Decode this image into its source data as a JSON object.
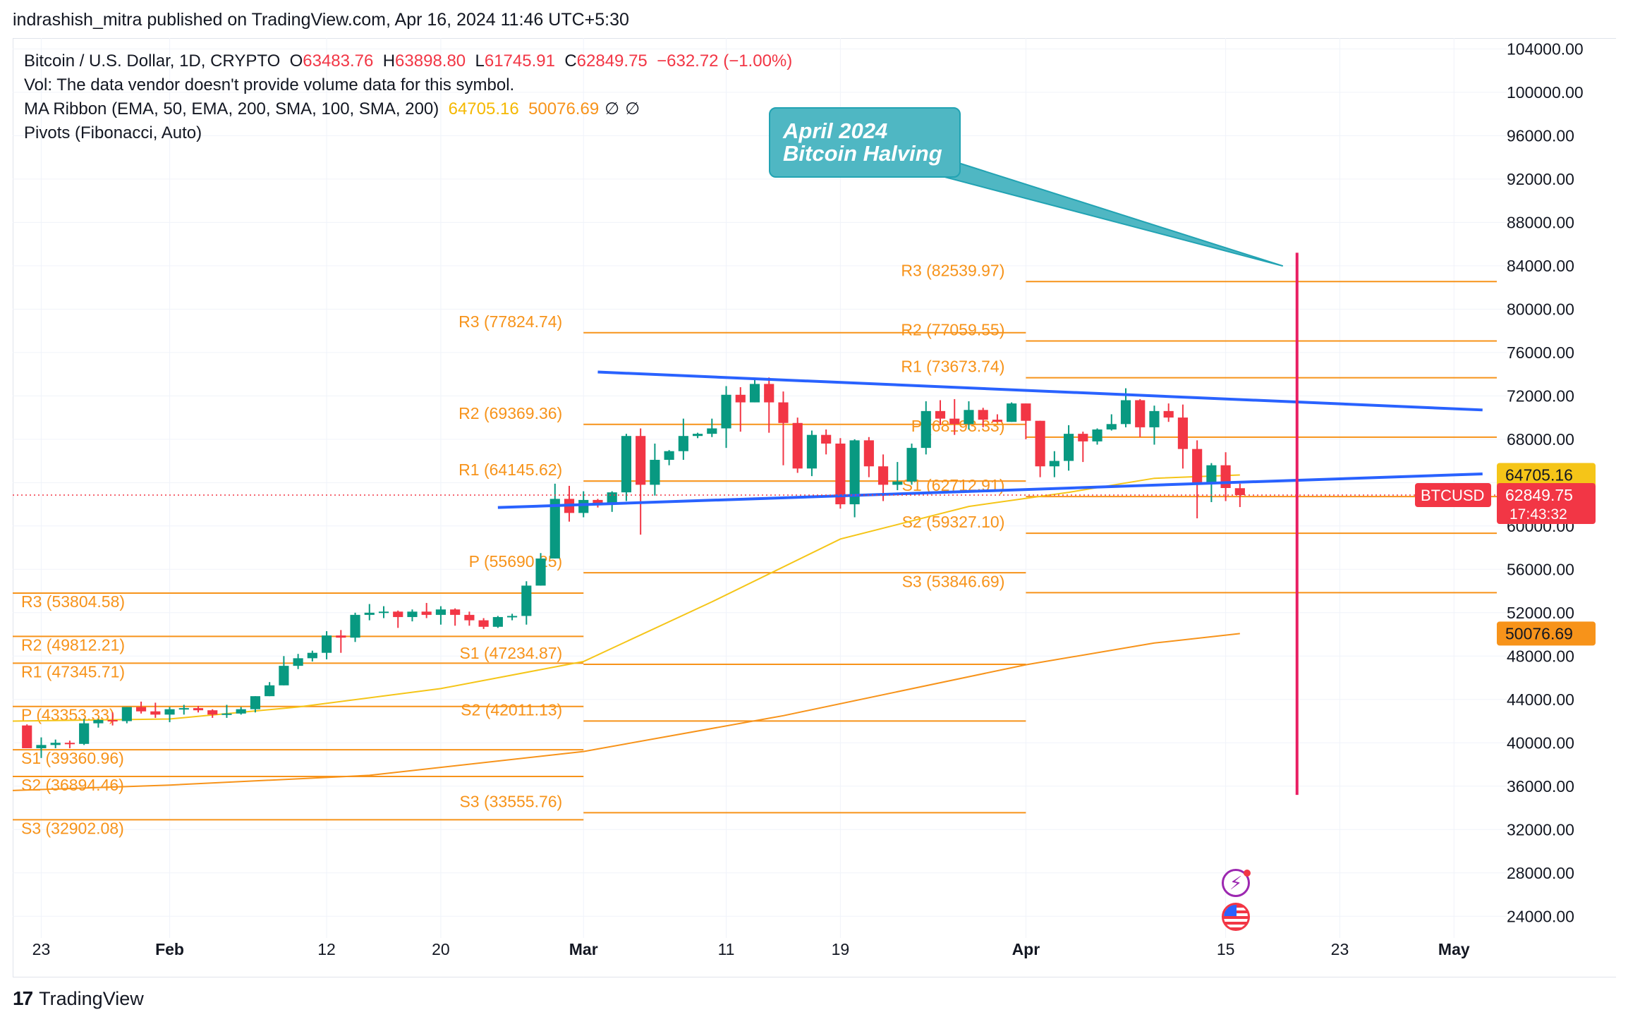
{
  "header": {
    "published_text": "indrashish_mitra published on TradingView.com, Apr 16, 2024 11:46 UTC+5:30"
  },
  "legend": {
    "symbol": "Bitcoin / U.S. Dollar, 1D, CRYPTO",
    "open_label": "O",
    "open": "63483.76",
    "high_label": "H",
    "high": "63898.80",
    "low_label": "L",
    "low": "61745.91",
    "close_label": "C",
    "close": "62849.75",
    "change": "−632.72 (−1.00%)",
    "vol_text": "Vol: The data vendor doesn't provide volume data for this symbol.",
    "ma_ribbon": "MA Ribbon (EMA, 50, EMA, 200, SMA, 100, SMA, 200)",
    "ma_val1": "64705.16",
    "ma_val2": "50076.69",
    "ma_nil1": "∅",
    "ma_nil2": "∅",
    "pivots": "Pivots (Fibonacci, Auto)"
  },
  "callout": {
    "line1": "April 2024",
    "line2": "Bitcoin Halving"
  },
  "footer": {
    "brand": "TradingView",
    "logo_glyph": "17"
  },
  "icons": {
    "flash": "flash-icon",
    "flag": "us-flag-icon",
    "flash_glyph": "⚡"
  },
  "colors": {
    "up": "#089981",
    "down": "#f23645",
    "pivot": "#f7931a",
    "trend": "#2962ff",
    "ema50": "#f5c518",
    "ema200": "#f7931a",
    "halving": "#e91e63",
    "callout": "#4fb7c3"
  },
  "chart_data": {
    "type": "candlestick",
    "symbol": "BTCUSD",
    "interval": "1D",
    "price_axis": {
      "min": 22000,
      "max": 105000,
      "ticks": [
        104000,
        100000,
        96000,
        92000,
        88000,
        84000,
        80000,
        76000,
        72000,
        68000,
        64000,
        60000,
        56000,
        52000,
        48000,
        44000,
        40000,
        36000,
        32000,
        28000,
        24000
      ]
    },
    "price_axis_labels": [
      "104000.00",
      "100000.00",
      "96000.00",
      "92000.00",
      "88000.00",
      "84000.00",
      "80000.00",
      "76000.00",
      "72000.00",
      "68000.00",
      "64000.00",
      "60000.00",
      "56000.00",
      "52000.00",
      "48000.00",
      "44000.00",
      "40000.00",
      "36000.00",
      "32000.00",
      "28000.00",
      "24000.00"
    ],
    "time_axis": {
      "start": "2024-01-21",
      "end": "2024-05-04",
      "ticks": [
        {
          "date": "2024-01-23",
          "label": "23",
          "bold": false
        },
        {
          "date": "2024-02-01",
          "label": "Feb",
          "bold": true
        },
        {
          "date": "2024-02-12",
          "label": "12",
          "bold": false
        },
        {
          "date": "2024-02-20",
          "label": "20",
          "bold": false
        },
        {
          "date": "2024-03-01",
          "label": "Mar",
          "bold": true
        },
        {
          "date": "2024-03-11",
          "label": "11",
          "bold": false
        },
        {
          "date": "2024-03-19",
          "label": "19",
          "bold": false
        },
        {
          "date": "2024-04-01",
          "label": "Apr",
          "bold": true
        },
        {
          "date": "2024-04-15",
          "label": "15",
          "bold": false
        },
        {
          "date": "2024-04-23",
          "label": "23",
          "bold": false
        },
        {
          "date": "2024-05-01",
          "label": "May",
          "bold": true
        }
      ]
    },
    "candles": [
      {
        "d": "2024-01-22",
        "o": 41600,
        "h": 41700,
        "l": 39500,
        "c": 39500
      },
      {
        "d": "2024-01-23",
        "o": 39500,
        "h": 40500,
        "l": 38600,
        "c": 39800
      },
      {
        "d": "2024-01-24",
        "o": 39800,
        "h": 40300,
        "l": 39500,
        "c": 40000
      },
      {
        "d": "2024-01-25",
        "o": 40000,
        "h": 40200,
        "l": 39500,
        "c": 39900
      },
      {
        "d": "2024-01-26",
        "o": 39900,
        "h": 42200,
        "l": 39800,
        "c": 41800
      },
      {
        "d": "2024-01-27",
        "o": 41800,
        "h": 42200,
        "l": 41400,
        "c": 42100
      },
      {
        "d": "2024-01-28",
        "o": 42100,
        "h": 42800,
        "l": 41600,
        "c": 42000
      },
      {
        "d": "2024-01-29",
        "o": 42000,
        "h": 43300,
        "l": 41800,
        "c": 43300
      },
      {
        "d": "2024-01-30",
        "o": 43300,
        "h": 43800,
        "l": 42700,
        "c": 42900
      },
      {
        "d": "2024-01-31",
        "o": 42900,
        "h": 43700,
        "l": 42300,
        "c": 42600
      },
      {
        "d": "2024-02-01",
        "o": 42600,
        "h": 43300,
        "l": 41900,
        "c": 43100
      },
      {
        "d": "2024-02-02",
        "o": 43100,
        "h": 43500,
        "l": 42600,
        "c": 43200
      },
      {
        "d": "2024-02-03",
        "o": 43200,
        "h": 43400,
        "l": 42800,
        "c": 43000
      },
      {
        "d": "2024-02-04",
        "o": 43000,
        "h": 43100,
        "l": 42300,
        "c": 42600
      },
      {
        "d": "2024-02-05",
        "o": 42600,
        "h": 43500,
        "l": 42300,
        "c": 42700
      },
      {
        "d": "2024-02-06",
        "o": 42700,
        "h": 43300,
        "l": 42600,
        "c": 43100
      },
      {
        "d": "2024-02-07",
        "o": 43100,
        "h": 44300,
        "l": 42800,
        "c": 44300
      },
      {
        "d": "2024-02-08",
        "o": 44300,
        "h": 45600,
        "l": 44300,
        "c": 45300
      },
      {
        "d": "2024-02-09",
        "o": 45300,
        "h": 48000,
        "l": 45300,
        "c": 47100
      },
      {
        "d": "2024-02-10",
        "o": 47100,
        "h": 48200,
        "l": 46800,
        "c": 47800
      },
      {
        "d": "2024-02-11",
        "o": 47800,
        "h": 48500,
        "l": 47500,
        "c": 48300
      },
      {
        "d": "2024-02-12",
        "o": 48300,
        "h": 50300,
        "l": 47700,
        "c": 49900
      },
      {
        "d": "2024-02-13",
        "o": 49900,
        "h": 50400,
        "l": 48300,
        "c": 49700
      },
      {
        "d": "2024-02-14",
        "o": 49700,
        "h": 52000,
        "l": 49300,
        "c": 51800
      },
      {
        "d": "2024-02-15",
        "o": 51800,
        "h": 52800,
        "l": 51300,
        "c": 52000
      },
      {
        "d": "2024-02-16",
        "o": 52000,
        "h": 52600,
        "l": 51500,
        "c": 52100
      },
      {
        "d": "2024-02-17",
        "o": 52100,
        "h": 52200,
        "l": 50600,
        "c": 51600
      },
      {
        "d": "2024-02-18",
        "o": 51600,
        "h": 52300,
        "l": 51200,
        "c": 52100
      },
      {
        "d": "2024-02-19",
        "o": 52100,
        "h": 52900,
        "l": 51500,
        "c": 51800
      },
      {
        "d": "2024-02-20",
        "o": 51800,
        "h": 52600,
        "l": 50900,
        "c": 52300
      },
      {
        "d": "2024-02-21",
        "o": 52300,
        "h": 52400,
        "l": 50800,
        "c": 51800
      },
      {
        "d": "2024-02-22",
        "o": 51800,
        "h": 52100,
        "l": 50800,
        "c": 51300
      },
      {
        "d": "2024-02-23",
        "o": 51300,
        "h": 51500,
        "l": 50500,
        "c": 50700
      },
      {
        "d": "2024-02-24",
        "o": 50700,
        "h": 51700,
        "l": 50600,
        "c": 51600
      },
      {
        "d": "2024-02-25",
        "o": 51600,
        "h": 51900,
        "l": 51300,
        "c": 51700
      },
      {
        "d": "2024-02-26",
        "o": 51700,
        "h": 54900,
        "l": 50900,
        "c": 54500
      },
      {
        "d": "2024-02-27",
        "o": 54500,
        "h": 57500,
        "l": 54500,
        "c": 57000
      },
      {
        "d": "2024-02-28",
        "o": 57000,
        "h": 63900,
        "l": 57000,
        "c": 62500
      },
      {
        "d": "2024-02-29",
        "o": 62500,
        "h": 63700,
        "l": 60400,
        "c": 61200
      },
      {
        "d": "2024-03-01",
        "o": 61200,
        "h": 63200,
        "l": 60800,
        "c": 62400
      },
      {
        "d": "2024-03-02",
        "o": 62400,
        "h": 62500,
        "l": 61700,
        "c": 62000
      },
      {
        "d": "2024-03-03",
        "o": 62000,
        "h": 63200,
        "l": 61300,
        "c": 63100
      },
      {
        "d": "2024-03-04",
        "o": 63100,
        "h": 68500,
        "l": 62300,
        "c": 68300
      },
      {
        "d": "2024-03-05",
        "o": 68300,
        "h": 69000,
        "l": 59200,
        "c": 63800
      },
      {
        "d": "2024-03-06",
        "o": 63800,
        "h": 67600,
        "l": 62800,
        "c": 66100
      },
      {
        "d": "2024-03-07",
        "o": 66100,
        "h": 67000,
        "l": 65600,
        "c": 66900
      },
      {
        "d": "2024-03-08",
        "o": 66900,
        "h": 69900,
        "l": 66100,
        "c": 68300
      },
      {
        "d": "2024-03-09",
        "o": 68300,
        "h": 68600,
        "l": 68100,
        "c": 68500
      },
      {
        "d": "2024-03-10",
        "o": 68500,
        "h": 69900,
        "l": 68200,
        "c": 69000
      },
      {
        "d": "2024-03-11",
        "o": 69000,
        "h": 72900,
        "l": 67200,
        "c": 72100
      },
      {
        "d": "2024-03-12",
        "o": 72100,
        "h": 72800,
        "l": 68700,
        "c": 71400
      },
      {
        "d": "2024-03-13",
        "o": 71400,
        "h": 73600,
        "l": 71400,
        "c": 73100
      },
      {
        "d": "2024-03-14",
        "o": 73100,
        "h": 73700,
        "l": 68600,
        "c": 71400
      },
      {
        "d": "2024-03-15",
        "o": 71400,
        "h": 72400,
        "l": 65600,
        "c": 69500
      },
      {
        "d": "2024-03-16",
        "o": 69500,
        "h": 70000,
        "l": 64900,
        "c": 65300
      },
      {
        "d": "2024-03-17",
        "o": 65300,
        "h": 68800,
        "l": 64600,
        "c": 68400
      },
      {
        "d": "2024-03-18",
        "o": 68400,
        "h": 68900,
        "l": 66600,
        "c": 67600
      },
      {
        "d": "2024-03-19",
        "o": 67600,
        "h": 68100,
        "l": 61600,
        "c": 62000
      },
      {
        "d": "2024-03-20",
        "o": 62000,
        "h": 68000,
        "l": 60800,
        "c": 67900
      },
      {
        "d": "2024-03-21",
        "o": 67900,
        "h": 68200,
        "l": 64500,
        "c": 65500
      },
      {
        "d": "2024-03-22",
        "o": 65500,
        "h": 66600,
        "l": 62300,
        "c": 63800
      },
      {
        "d": "2024-03-23",
        "o": 63800,
        "h": 65900,
        "l": 63300,
        "c": 64100
      },
      {
        "d": "2024-03-24",
        "o": 64100,
        "h": 67600,
        "l": 63800,
        "c": 67200
      },
      {
        "d": "2024-03-25",
        "o": 67200,
        "h": 71500,
        "l": 66600,
        "c": 70600
      },
      {
        "d": "2024-03-26",
        "o": 70600,
        "h": 71600,
        "l": 69300,
        "c": 69900
      },
      {
        "d": "2024-03-27",
        "o": 69900,
        "h": 71700,
        "l": 68400,
        "c": 69400
      },
      {
        "d": "2024-03-28",
        "o": 69400,
        "h": 71500,
        "l": 68900,
        "c": 70700
      },
      {
        "d": "2024-03-29",
        "o": 70700,
        "h": 70900,
        "l": 69100,
        "c": 69800
      },
      {
        "d": "2024-03-30",
        "o": 69800,
        "h": 70300,
        "l": 69600,
        "c": 69600
      },
      {
        "d": "2024-03-31",
        "o": 69600,
        "h": 71400,
        "l": 69600,
        "c": 71300
      },
      {
        "d": "2024-04-01",
        "o": 71300,
        "h": 71300,
        "l": 68000,
        "c": 69700
      },
      {
        "d": "2024-04-02",
        "o": 69700,
        "h": 69700,
        "l": 64500,
        "c": 65500
      },
      {
        "d": "2024-04-03",
        "o": 65500,
        "h": 66900,
        "l": 64500,
        "c": 66000
      },
      {
        "d": "2024-04-04",
        "o": 66000,
        "h": 69300,
        "l": 65100,
        "c": 68500
      },
      {
        "d": "2024-04-05",
        "o": 68500,
        "h": 68700,
        "l": 65900,
        "c": 67800
      },
      {
        "d": "2024-04-06",
        "o": 67800,
        "h": 69000,
        "l": 67500,
        "c": 68900
      },
      {
        "d": "2024-04-07",
        "o": 68900,
        "h": 70300,
        "l": 68800,
        "c": 69400
      },
      {
        "d": "2024-04-08",
        "o": 69400,
        "h": 72700,
        "l": 69100,
        "c": 71600
      },
      {
        "d": "2024-04-09",
        "o": 71600,
        "h": 71700,
        "l": 68200,
        "c": 69100
      },
      {
        "d": "2024-04-10",
        "o": 69100,
        "h": 71100,
        "l": 67500,
        "c": 70600
      },
      {
        "d": "2024-04-11",
        "o": 70600,
        "h": 71300,
        "l": 69600,
        "c": 70000
      },
      {
        "d": "2024-04-12",
        "o": 70000,
        "h": 71200,
        "l": 65300,
        "c": 67100
      },
      {
        "d": "2024-04-13",
        "o": 67100,
        "h": 67900,
        "l": 60700,
        "c": 63900
      },
      {
        "d": "2024-04-14",
        "o": 63900,
        "h": 65800,
        "l": 62200,
        "c": 65600
      },
      {
        "d": "2024-04-15",
        "o": 65600,
        "h": 66800,
        "l": 62300,
        "c": 63500
      },
      {
        "d": "2024-04-16",
        "o": 63483.76,
        "h": 63898.8,
        "l": 61745.91,
        "c": 62849.75
      }
    ],
    "pivot_levels": [
      {
        "period": "2024-01",
        "start": "2024-01-21",
        "end": "2024-02-01",
        "levels": [
          {
            "label": "R3 (53804.58)",
            "value": 53804.58
          },
          {
            "label": "R2 (49812.21)",
            "value": 49812.21
          },
          {
            "label": "R1 (47345.71)",
            "value": 47345.71
          },
          {
            "label": "P (43353.33)",
            "value": 43353.33
          },
          {
            "label": "S1 (39360.96)",
            "value": 39360.96
          },
          {
            "label": "S2 (36894.46)",
            "value": 36894.46
          },
          {
            "label": "S3 (32902.08)",
            "value": 32902.08
          }
        ]
      },
      {
        "period": "2024-02",
        "start": "2024-02-01",
        "end": "2024-03-01",
        "levels": [
          {
            "label": "R3 (53804.58)",
            "value": 53804.58
          },
          {
            "label": "R2 (49812.21)",
            "value": 49812.21
          },
          {
            "label": "R1 (47345.71)",
            "value": 47345.71
          },
          {
            "label": "P (43353.33)",
            "value": 43353.33
          },
          {
            "label": "S1 (39360.96)",
            "value": 39360.96
          },
          {
            "label": "S2 (36894.46)",
            "value": 36894.46
          },
          {
            "label": "S3 (32902.08)",
            "value": 32902.08
          }
        ]
      },
      {
        "period": "2024-03",
        "start": "2024-03-01",
        "end": "2024-04-01",
        "levels": [
          {
            "label": "R3 (77824.74)",
            "value": 77824.74
          },
          {
            "label": "R2 (69369.36)",
            "value": 69369.36
          },
          {
            "label": "R1 (64145.62)",
            "value": 64145.62
          },
          {
            "label": "P (55690.25)",
            "value": 55690.25
          },
          {
            "label": "S1 (47234.87)",
            "value": 47234.87
          },
          {
            "label": "S2 (42011.13)",
            "value": 42011.13
          },
          {
            "label": "S3 (33555.76)",
            "value": 33555.76
          }
        ]
      },
      {
        "period": "2024-04",
        "start": "2024-04-01",
        "end": "2024-05-04",
        "levels": [
          {
            "label": "R3 (82539.97)",
            "value": 82539.97
          },
          {
            "label": "R2 (77059.55)",
            "value": 77059.55
          },
          {
            "label": "R1 (73673.74)",
            "value": 73673.74
          },
          {
            "label": "P (68193.33)",
            "value": 68193.33
          },
          {
            "label": "S1 (62712.91)",
            "value": 62712.91
          },
          {
            "label": "S2 (59327.10)",
            "value": 59327.1
          },
          {
            "label": "S3 (53846.69)",
            "value": 53846.69
          }
        ]
      }
    ],
    "ema50": [
      [
        "2024-01-21",
        42000
      ],
      [
        "2024-02-01",
        42200
      ],
      [
        "2024-02-10",
        43300
      ],
      [
        "2024-02-20",
        45000
      ],
      [
        "2024-03-01",
        47500
      ],
      [
        "2024-03-10",
        53000
      ],
      [
        "2024-03-19",
        58800
      ],
      [
        "2024-03-28",
        61800
      ],
      [
        "2024-04-04",
        63100
      ],
      [
        "2024-04-10",
        64400
      ],
      [
        "2024-04-16",
        64705.16
      ]
    ],
    "ema200": [
      [
        "2024-01-21",
        35600
      ],
      [
        "2024-02-01",
        36100
      ],
      [
        "2024-02-15",
        37000
      ],
      [
        "2024-03-01",
        39200
      ],
      [
        "2024-03-15",
        42500
      ],
      [
        "2024-04-01",
        47200
      ],
      [
        "2024-04-10",
        49200
      ],
      [
        "2024-04-16",
        50076.69
      ]
    ],
    "trendlines": [
      {
        "name": "upper",
        "from": [
          "2024-03-02",
          74200
        ],
        "to": [
          "2024-05-03",
          70700
        ]
      },
      {
        "name": "lower",
        "from": [
          "2024-02-24",
          61700
        ],
        "to": [
          "2024-05-03",
          64800
        ]
      }
    ],
    "halving_line": {
      "date": "2024-04-20",
      "from": 35200,
      "to": 85200
    },
    "callout_arrow_tip": {
      "date": "2024-04-20",
      "price": 84500
    },
    "last_price": {
      "label": "BTCUSD",
      "value": "62849.75",
      "countdown": "17:43:32",
      "price": 62849.75
    },
    "ma_badges": [
      {
        "value": "64705.16",
        "price": 64705.16,
        "bg": "#f5c518"
      },
      {
        "value": "50076.69",
        "price": 50076.69,
        "bg": "#f7931a"
      }
    ]
  }
}
